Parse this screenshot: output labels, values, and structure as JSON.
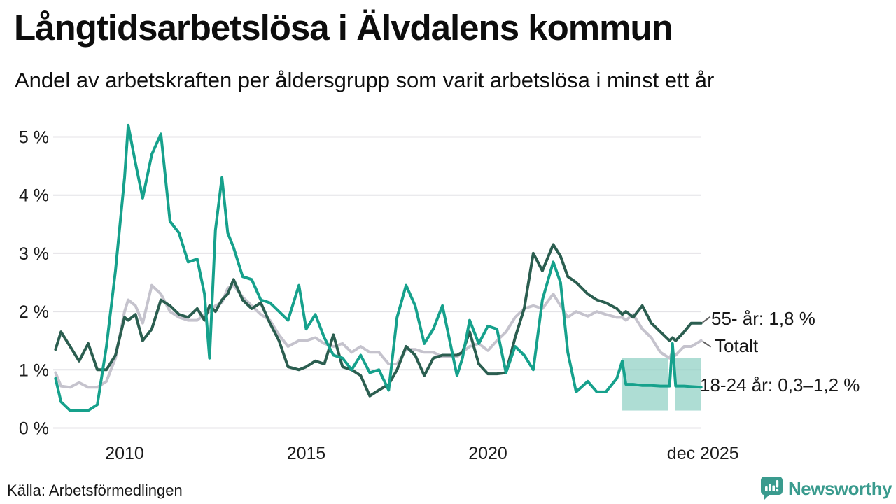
{
  "header": {
    "title": "Långtidsarbetslösa i Älvdalens kommun",
    "subtitle": "Andel av arbetskraften per åldersgrupp som varit arbetslösa i minst ett år"
  },
  "footer": {
    "source": "Källa: Arbetsförmedlingen",
    "brand": "Newsworthy"
  },
  "colors": {
    "teal_18_24": "#16a18c",
    "green_55": "#2b5e50",
    "gray_total": "#c5c3cd",
    "band": "#8fd0c3",
    "gridline": "#e4e3e7",
    "text": "#191919",
    "logo_teal": "#3a9b8e",
    "leader": "#5f5f5f"
  },
  "chart_data": {
    "type": "line",
    "title": "Långtidsarbetslösa i Älvdalens kommun",
    "subtitle": "Andel av arbetskraften per åldersgrupp som varit arbetslösa i minst ett år",
    "x_unit": "decimal_year",
    "xlim": [
      2008.05,
      2025.95
    ],
    "ylim": [
      0,
      5.3
    ],
    "grid": "horizontal",
    "y_ticks": [
      {
        "label": "0 %",
        "value": 0
      },
      {
        "label": "1 %",
        "value": 1
      },
      {
        "label": "2 %",
        "value": 2
      },
      {
        "label": "3 %",
        "value": 3
      },
      {
        "label": "4 %",
        "value": 4
      },
      {
        "label": "5 %",
        "value": 5
      }
    ],
    "x_ticks": [
      {
        "label": "2010",
        "value": 2010
      },
      {
        "label": "2015",
        "value": 2015
      },
      {
        "label": "2020",
        "value": 2020
      },
      {
        "label": "dec 2025",
        "value": 2025.92
      }
    ],
    "x": [
      2008.1,
      2008.25,
      2008.5,
      2008.75,
      2009,
      2009.25,
      2009.5,
      2009.75,
      2010,
      2010.1,
      2010.3,
      2010.5,
      2010.75,
      2011,
      2011.25,
      2011.5,
      2011.75,
      2012,
      2012.2,
      2012.34,
      2012.5,
      2012.68,
      2012.84,
      2013,
      2013.25,
      2013.5,
      2013.75,
      2014,
      2014.25,
      2014.5,
      2014.8,
      2015,
      2015.25,
      2015.5,
      2015.75,
      2016,
      2016.25,
      2016.5,
      2016.75,
      2017,
      2017.27,
      2017.5,
      2017.75,
      2018,
      2018.25,
      2018.5,
      2018.75,
      2019,
      2019.15,
      2019.3,
      2019.5,
      2019.75,
      2020,
      2020.25,
      2020.5,
      2020.75,
      2021,
      2021.25,
      2021.5,
      2021.8,
      2022,
      2022.2,
      2022.43,
      2022.75,
      2023,
      2023.25,
      2023.55,
      2023.7,
      2023.8,
      2024,
      2024.25,
      2024.5,
      2024.75,
      2025,
      2025.08,
      2025.17,
      2025.4,
      2025.6,
      2025.87
    ],
    "series": [
      {
        "name": "Totalt",
        "color": "#c5c3cd",
        "width": 4,
        "values": [
          0.95,
          0.72,
          0.7,
          0.78,
          0.7,
          0.7,
          0.8,
          1.2,
          2.0,
          2.2,
          2.1,
          1.8,
          2.45,
          2.3,
          2.0,
          1.9,
          1.85,
          1.85,
          1.95,
          2.0,
          2.1,
          2.15,
          2.4,
          2.45,
          2.25,
          2.1,
          1.95,
          1.85,
          1.6,
          1.4,
          1.5,
          1.5,
          1.55,
          1.45,
          1.4,
          1.45,
          1.3,
          1.4,
          1.3,
          1.3,
          1.1,
          1.1,
          1.35,
          1.35,
          1.3,
          1.3,
          1.22,
          1.22,
          1.22,
          1.3,
          1.4,
          1.45,
          1.33,
          1.5,
          1.65,
          1.9,
          2.05,
          2.1,
          2.05,
          2.3,
          2.1,
          1.9,
          2.0,
          1.92,
          2.0,
          1.95,
          1.9,
          1.9,
          1.85,
          1.95,
          1.7,
          1.55,
          1.3,
          1.2,
          1.3,
          1.25,
          1.4,
          1.4,
          1.5
        ]
      },
      {
        "name": "55- år",
        "color": "#2b5e50",
        "width": 4,
        "values": [
          1.35,
          1.65,
          1.4,
          1.15,
          1.45,
          1.0,
          1.0,
          1.25,
          1.9,
          1.85,
          1.95,
          1.5,
          1.7,
          2.2,
          2.1,
          1.95,
          1.9,
          2.05,
          1.85,
          2.1,
          2.0,
          2.2,
          2.3,
          2.55,
          2.2,
          2.05,
          2.15,
          1.8,
          1.5,
          1.05,
          1.0,
          1.05,
          1.15,
          1.1,
          1.6,
          1.05,
          1.0,
          0.9,
          0.55,
          0.65,
          0.75,
          1.0,
          1.4,
          1.25,
          0.9,
          1.2,
          1.25,
          1.25,
          1.25,
          1.3,
          1.65,
          1.1,
          0.93,
          0.93,
          0.95,
          1.55,
          2.05,
          3.0,
          2.7,
          3.15,
          2.95,
          2.6,
          2.5,
          2.3,
          2.2,
          2.15,
          2.05,
          1.95,
          2.0,
          1.9,
          2.1,
          1.8,
          1.65,
          1.5,
          1.55,
          1.5,
          1.65,
          1.8,
          1.8
        ]
      },
      {
        "name": "18-24 år",
        "color": "#16a18c",
        "width": 4,
        "values": [
          0.85,
          0.45,
          0.3,
          0.3,
          0.3,
          0.4,
          1.4,
          2.7,
          4.3,
          5.2,
          4.55,
          3.95,
          4.7,
          5.05,
          3.55,
          3.35,
          2.85,
          2.9,
          2.3,
          1.2,
          3.4,
          4.3,
          3.35,
          3.1,
          2.6,
          2.55,
          2.2,
          2.15,
          2.0,
          1.85,
          2.45,
          1.7,
          1.95,
          1.55,
          1.25,
          1.2,
          1.0,
          1.25,
          0.95,
          1.0,
          0.65,
          1.9,
          2.45,
          2.1,
          1.45,
          1.7,
          2.1,
          1.35,
          0.9,
          1.2,
          1.85,
          1.45,
          1.75,
          1.7,
          0.95,
          1.4,
          1.25,
          1.0,
          2.2,
          2.85,
          2.5,
          1.3,
          0.62,
          0.8,
          0.62,
          0.62,
          0.85,
          1.15,
          0.75,
          0.75,
          0.73,
          0.73,
          0.72,
          0.72,
          1.45,
          0.72,
          0.72,
          0.71,
          0.7
        ]
      }
    ],
    "uncertainty_band": {
      "series": "18-24 år",
      "low": 0.3,
      "high": 1.2,
      "segments": [
        [
          2023.7,
          2024.96
        ],
        [
          2025.15,
          2025.87
        ]
      ],
      "color": "#8fd0c3"
    },
    "annotations": [
      {
        "text": "55- år: 1,8 %",
        "series": "55- år",
        "end_value": 1.8
      },
      {
        "text": "Totalt",
        "series": "Totalt",
        "end_value": 1.5
      },
      {
        "text": "18-24 år: 0,3–1,2 %",
        "series": "18-24 år",
        "end_range": [
          0.3,
          1.2
        ]
      }
    ],
    "legend_position": "end-of-line-labels"
  }
}
